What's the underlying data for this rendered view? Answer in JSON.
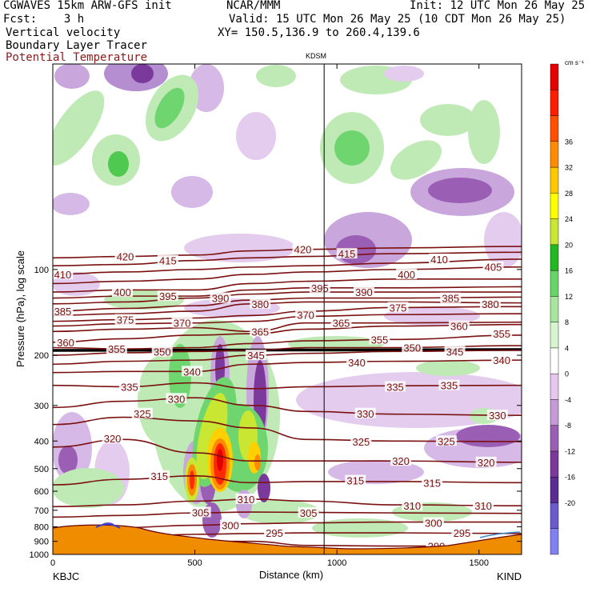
{
  "header": {
    "line1_left": "CGWAVES 15km ARW-GFS init",
    "line1_center": "NCAR/MMM",
    "line1_right": "Init: 12 UTC Mon 26 May 25",
    "line2_left": "Fcst:    3 h",
    "line2_right": "Valid: 15 UTC Mon 26 May 25 (10 CDT Mon 26 May 25)",
    "line3_left": "Vertical velocity",
    "line3_right": "XY= 150.5,136.9 to 260.4,139.6",
    "line4_left": "Boundary Layer Tracer",
    "line5_left": "Potential Temperature"
  },
  "colors": {
    "theta_contour": "#7a1010",
    "terrain": "#f08c00",
    "terrain_outline": "#6b0000",
    "frame": "#000000"
  },
  "chart_data": {
    "type": "heatmap",
    "title": "KDSM",
    "xlabel": "Distance (km)",
    "ylabel": "Pressure (hPa), log scale",
    "xlim": [
      0,
      1650
    ],
    "ylim": [
      1000,
      19
    ],
    "y_scale": "log",
    "x_ticks": [
      0,
      500,
      1000,
      1500
    ],
    "y_ticks": [
      100,
      200,
      300,
      400,
      500,
      600,
      700,
      800,
      900,
      1000
    ],
    "left_end_label": "KBJC",
    "right_end_label": "KIND",
    "marker_line_x": 955,
    "colorbar": {
      "units": "cm s⁻¹",
      "levels": [
        -20,
        -16,
        -12,
        -8,
        -4,
        0,
        4,
        8,
        12,
        16,
        20,
        24,
        28,
        32,
        36
      ],
      "colors": [
        "#8080f0",
        "#6a5acd",
        "#5b2c91",
        "#7b3a9b",
        "#9a5fb5",
        "#c49bd6",
        "#e6c8ee",
        "#ffffff",
        "#d8f5d0",
        "#a8e6a0",
        "#66d466",
        "#22b822",
        "#c8e632",
        "#ffff00",
        "#ffc800",
        "#ff8c00",
        "#ff5000",
        "#ff1e00",
        "#e60000"
      ]
    },
    "theta_levels": [
      290,
      295,
      300,
      305,
      310,
      315,
      320,
      325,
      330,
      335,
      340,
      345,
      350,
      355,
      360,
      365,
      370,
      375,
      380,
      385,
      390,
      395,
      400,
      405,
      410,
      415,
      420
    ],
    "contour_labels": [
      {
        "text": "420",
        "x": 255,
        "p": 90
      },
      {
        "text": "415",
        "x": 405,
        "p": 93
      },
      {
        "text": "410",
        "x": 35,
        "p": 104
      },
      {
        "text": "420",
        "x": 880,
        "p": 85
      },
      {
        "text": "415",
        "x": 1035,
        "p": 88
      },
      {
        "text": "400",
        "x": 1245,
        "p": 104
      },
      {
        "text": "410",
        "x": 1360,
        "p": 92
      },
      {
        "text": "405",
        "x": 1550,
        "p": 98
      },
      {
        "text": "400",
        "x": 245,
        "p": 120
      },
      {
        "text": "395",
        "x": 405,
        "p": 124
      },
      {
        "text": "390",
        "x": 590,
        "p": 126
      },
      {
        "text": "380",
        "x": 730,
        "p": 132
      },
      {
        "text": "395",
        "x": 940,
        "p": 116
      },
      {
        "text": "390",
        "x": 1095,
        "p": 120
      },
      {
        "text": "385",
        "x": 1400,
        "p": 126
      },
      {
        "text": "380",
        "x": 1540,
        "p": 132
      },
      {
        "text": "385",
        "x": 35,
        "p": 140
      },
      {
        "text": "375",
        "x": 255,
        "p": 150
      },
      {
        "text": "370",
        "x": 455,
        "p": 154
      },
      {
        "text": "375",
        "x": 1215,
        "p": 136
      },
      {
        "text": "370",
        "x": 890,
        "p": 144
      },
      {
        "text": "365",
        "x": 1015,
        "p": 154
      },
      {
        "text": "360",
        "x": 1430,
        "p": 158
      },
      {
        "text": "365",
        "x": 730,
        "p": 165
      },
      {
        "text": "360",
        "x": 45,
        "p": 180
      },
      {
        "text": "355",
        "x": 225,
        "p": 190
      },
      {
        "text": "350",
        "x": 385,
        "p": 194
      },
      {
        "text": "355",
        "x": 1150,
        "p": 176
      },
      {
        "text": "350",
        "x": 1265,
        "p": 188
      },
      {
        "text": "345",
        "x": 1415,
        "p": 194
      },
      {
        "text": "355",
        "x": 1580,
        "p": 168
      },
      {
        "text": "345",
        "x": 715,
        "p": 200
      },
      {
        "text": "340",
        "x": 490,
        "p": 228
      },
      {
        "text": "340",
        "x": 1070,
        "p": 212
      },
      {
        "text": "340",
        "x": 1580,
        "p": 208
      },
      {
        "text": "335",
        "x": 270,
        "p": 258
      },
      {
        "text": "335",
        "x": 1205,
        "p": 258
      },
      {
        "text": "335",
        "x": 1395,
        "p": 255
      },
      {
        "text": "330",
        "x": 435,
        "p": 284
      },
      {
        "text": "330",
        "x": 1100,
        "p": 320
      },
      {
        "text": "330",
        "x": 1565,
        "p": 325
      },
      {
        "text": "325",
        "x": 315,
        "p": 320
      },
      {
        "text": "325",
        "x": 1085,
        "p": 402
      },
      {
        "text": "325",
        "x": 1385,
        "p": 400
      },
      {
        "text": "320",
        "x": 210,
        "p": 392
      },
      {
        "text": "320",
        "x": 1225,
        "p": 470
      },
      {
        "text": "320",
        "x": 1525,
        "p": 475
      },
      {
        "text": "315",
        "x": 375,
        "p": 530
      },
      {
        "text": "315",
        "x": 1065,
        "p": 550
      },
      {
        "text": "315",
        "x": 1335,
        "p": 560
      },
      {
        "text": "310",
        "x": 680,
        "p": 640
      },
      {
        "text": "310",
        "x": 1265,
        "p": 675
      },
      {
        "text": "310",
        "x": 1515,
        "p": 675
      },
      {
        "text": "305",
        "x": 520,
        "p": 712
      },
      {
        "text": "305",
        "x": 900,
        "p": 715
      },
      {
        "text": "300",
        "x": 625,
        "p": 790
      },
      {
        "text": "300",
        "x": 1340,
        "p": 775
      },
      {
        "text": "295",
        "x": 780,
        "p": 840
      },
      {
        "text": "295",
        "x": 1440,
        "p": 840
      },
      {
        "text": "290",
        "x": 1350,
        "p": 935
      }
    ]
  }
}
